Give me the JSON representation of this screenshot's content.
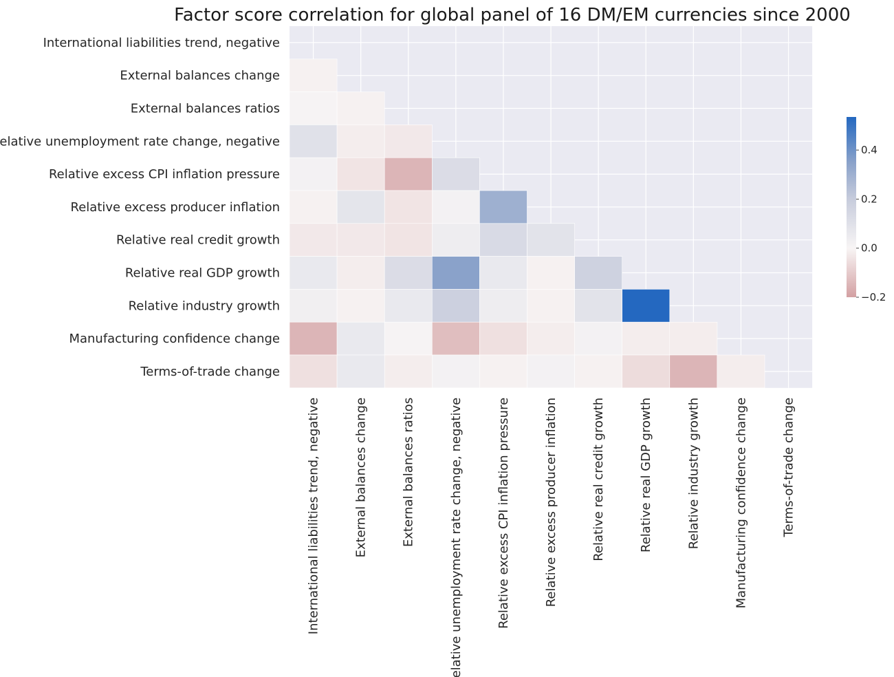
{
  "chart_data": {
    "type": "heatmap",
    "title": "Factor score correlation for global panel of 16 DM/EM currencies since 2000",
    "labels": [
      "International liabilities trend, negative",
      "External balances change",
      "External balances ratios",
      "Relative unemployment rate change, negative",
      "Relative excess CPI inflation pressure",
      "Relative excess producer inflation",
      "Relative real credit growth",
      "Relative real GDP growth",
      "Relative industry growth",
      "Manufacturing confidence change",
      "Terms-of-trade change"
    ],
    "matrix": [
      [
        null,
        null,
        null,
        null,
        null,
        null,
        null,
        null,
        null,
        null,
        null
      ],
      [
        -0.01,
        null,
        null,
        null,
        null,
        null,
        null,
        null,
        null,
        null,
        null
      ],
      [
        0.01,
        -0.01,
        null,
        null,
        null,
        null,
        null,
        null,
        null,
        null,
        null
      ],
      [
        0.1,
        -0.02,
        -0.03,
        null,
        null,
        null,
        null,
        null,
        null,
        null,
        null
      ],
      [
        0.02,
        -0.04,
        -0.15,
        0.12,
        null,
        null,
        null,
        null,
        null,
        null,
        null
      ],
      [
        -0.01,
        0.08,
        -0.04,
        0.02,
        0.3,
        null,
        null,
        null,
        null,
        null,
        null
      ],
      [
        -0.03,
        -0.03,
        -0.04,
        0.04,
        0.13,
        0.09,
        null,
        null,
        null,
        null,
        null
      ],
      [
        0.06,
        -0.02,
        0.12,
        0.35,
        0.06,
        -0.01,
        0.17,
        null,
        null,
        null,
        null
      ],
      [
        0.03,
        -0.01,
        0.06,
        0.18,
        0.04,
        -0.01,
        0.09,
        0.55,
        null,
        null,
        null
      ],
      [
        -0.15,
        0.06,
        0.01,
        -0.13,
        -0.05,
        -0.02,
        0.02,
        -0.02,
        -0.02,
        null,
        null
      ],
      [
        -0.05,
        0.06,
        -0.02,
        0.02,
        -0.01,
        0.02,
        -0.01,
        -0.06,
        -0.15,
        -0.02,
        null
      ]
    ],
    "vmin": -0.2,
    "vmax": 0.535,
    "colorbar_ticks": [
      -0.2,
      0.0,
      0.2,
      0.4
    ],
    "colorbar_tick_labels": [
      "−0.2",
      "0.0",
      "0.2",
      "0.4"
    ],
    "colors": {
      "negative": "#cf8a8a",
      "zero": "#f8f5f5",
      "positive": "#2468c0",
      "masked": "#eaeaf2",
      "grid": "#ffffff"
    },
    "colormap_stops": [
      {
        "v": -0.2,
        "color": "#d3a0a2"
      },
      {
        "v": 0.0,
        "color": "#f8f5f5"
      },
      {
        "v": 0.2,
        "color": "#c7ccdc"
      },
      {
        "v": 0.35,
        "color": "#8aa2ca"
      },
      {
        "v": 0.535,
        "color": "#2468c0"
      }
    ]
  }
}
